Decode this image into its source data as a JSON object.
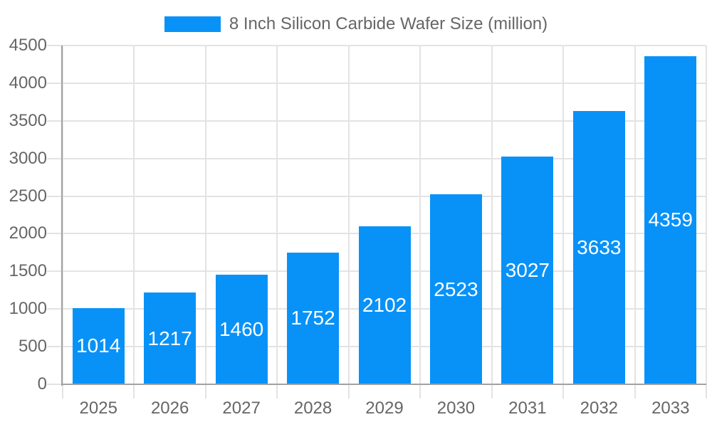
{
  "chart_data": {
    "type": "bar",
    "categories": [
      "2025",
      "2026",
      "2027",
      "2028",
      "2029",
      "2030",
      "2031",
      "2032",
      "2033"
    ],
    "series": [
      {
        "name": "8 Inch Silicon Carbide Wafer Size (million)",
        "values": [
          1014,
          1217,
          1460,
          1752,
          2102,
          2523,
          3027,
          3633,
          4359
        ]
      }
    ],
    "value_labels": [
      "1014",
      "1217",
      "1460",
      "1752",
      "2102",
      "2523",
      "3027",
      "3633",
      "4359"
    ],
    "title": "",
    "xlabel": "",
    "ylabel": "",
    "ylim": [
      0,
      4500
    ],
    "yticks": [
      "0",
      "500",
      "1000",
      "1500",
      "2000",
      "2500",
      "3000",
      "3500",
      "4000",
      "4500"
    ],
    "grid": true,
    "legend_position": "top-center",
    "colors": {
      "bar": "#0892f8",
      "grid": "#e3e3e3",
      "axis_line": "#a1a1a1",
      "tick_label": "#666666",
      "legend_text": "#666666",
      "value_label": "#ffffff",
      "background": "#ffffff"
    }
  }
}
